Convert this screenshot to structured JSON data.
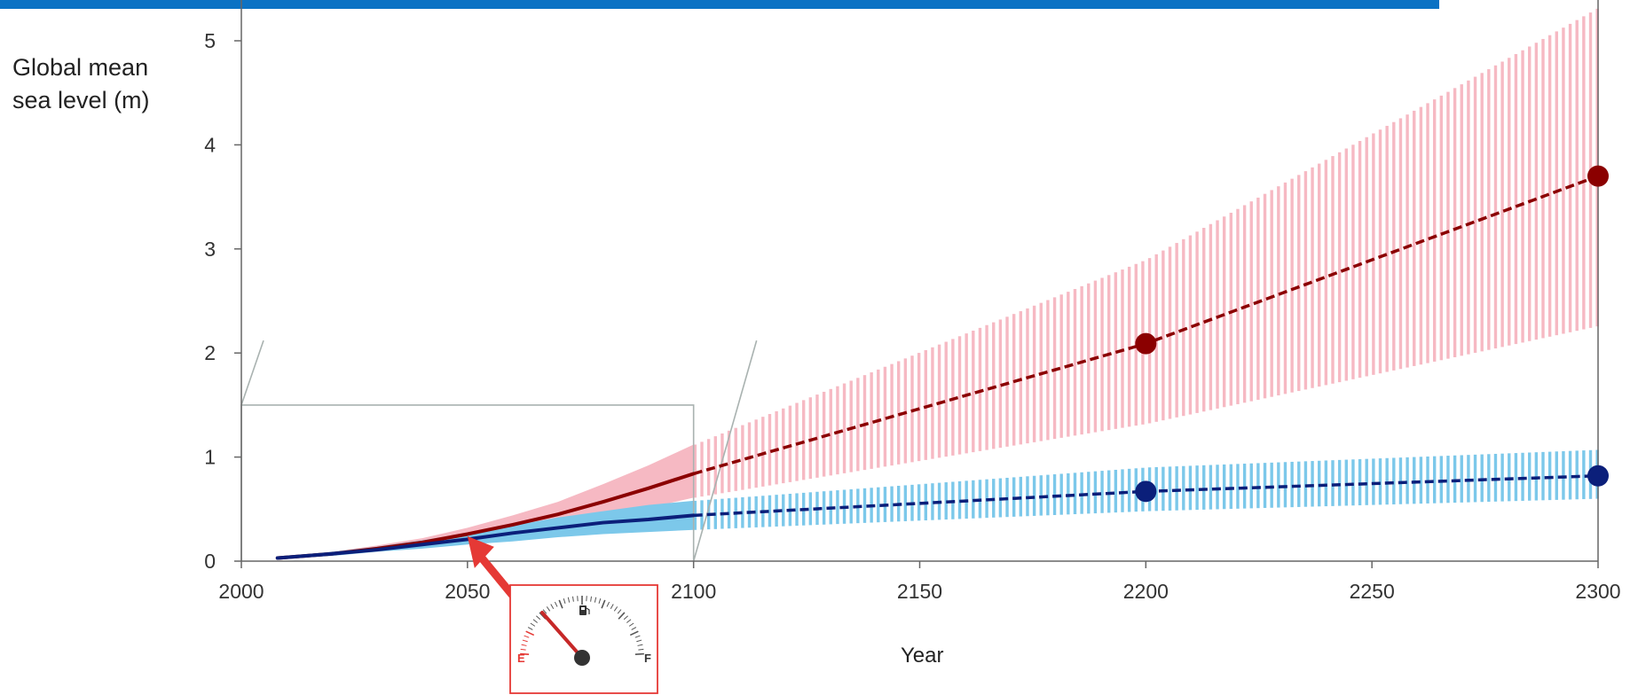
{
  "colors": {
    "top_bar": "#0b72c4",
    "high_line": "#8b0000",
    "high_band": "#f6b9c3",
    "low_line": "#0b1f7a",
    "low_band": "#7cc8ea",
    "axis": "#666666",
    "zoom_box": "#a9b2b0",
    "callout": "#e53935"
  },
  "chart_data": {
    "type": "line",
    "xlabel": "Year",
    "ylabel": "Global mean\nsea level (m)",
    "xlim": [
      2000,
      2300
    ],
    "ylim": [
      0,
      5
    ],
    "xticks": [
      "2000",
      "2050",
      "2100",
      "2150",
      "2200",
      "2250",
      "2300"
    ],
    "yticks": [
      "0",
      "1",
      "2",
      "3",
      "4",
      "5"
    ],
    "grid": false,
    "series": [
      {
        "key": "high",
        "color": "#8b0000",
        "band_color": "#f6b9c3",
        "x": [
          2008,
          2020,
          2030,
          2040,
          2050,
          2060,
          2070,
          2080,
          2090,
          2100
        ],
        "y": [
          0.03,
          0.07,
          0.12,
          0.18,
          0.26,
          0.35,
          0.45,
          0.57,
          0.7,
          0.84
        ],
        "band_x": [
          2008,
          2020,
          2030,
          2040,
          2050,
          2060,
          2070,
          2080,
          2090,
          2100
        ],
        "band_low": [
          0.02,
          0.06,
          0.1,
          0.15,
          0.2,
          0.27,
          0.34,
          0.42,
          0.51,
          0.61
        ],
        "band_high": [
          0.04,
          0.09,
          0.15,
          0.22,
          0.32,
          0.44,
          0.57,
          0.74,
          0.92,
          1.12
        ],
        "projection_x": [
          2100,
          2200,
          2300
        ],
        "projection_y": [
          0.84,
          2.09,
          3.7
        ],
        "projection_low": [
          0.61,
          1.32,
          2.26
        ],
        "projection_high": [
          1.12,
          2.9,
          5.32
        ],
        "markers": [
          {
            "x": 2200,
            "y": 2.09
          },
          {
            "x": 2300,
            "y": 3.7
          }
        ]
      },
      {
        "key": "low",
        "color": "#0b1f7a",
        "band_color": "#7cc8ea",
        "x": [
          2008,
          2020,
          2030,
          2040,
          2050,
          2060,
          2070,
          2080,
          2090,
          2100
        ],
        "y": [
          0.03,
          0.07,
          0.11,
          0.16,
          0.21,
          0.27,
          0.32,
          0.37,
          0.4,
          0.44
        ],
        "band_x": [
          2008,
          2020,
          2030,
          2040,
          2050,
          2060,
          2070,
          2080,
          2090,
          2100
        ],
        "band_low": [
          0.02,
          0.05,
          0.09,
          0.12,
          0.16,
          0.19,
          0.23,
          0.26,
          0.28,
          0.3
        ],
        "band_high": [
          0.04,
          0.09,
          0.14,
          0.2,
          0.27,
          0.34,
          0.42,
          0.48,
          0.54,
          0.58
        ],
        "projection_x": [
          2100,
          2200,
          2300
        ],
        "projection_y": [
          0.44,
          0.67,
          0.82
        ],
        "projection_low": [
          0.3,
          0.48,
          0.6
        ],
        "projection_high": [
          0.58,
          0.9,
          1.07
        ],
        "markers": [
          {
            "x": 2200,
            "y": 0.67
          },
          {
            "x": 2300,
            "y": 0.82
          }
        ]
      }
    ],
    "zoom_box": {
      "x0": 2000,
      "x1": 2100,
      "y_top": 1.5
    },
    "callout": {
      "pointer_year": 2050,
      "pointer_value": 0.24
    }
  },
  "gauge": {
    "empty_label": "E",
    "full_label": "F",
    "fuel_icon": "fuel-pump-icon"
  }
}
